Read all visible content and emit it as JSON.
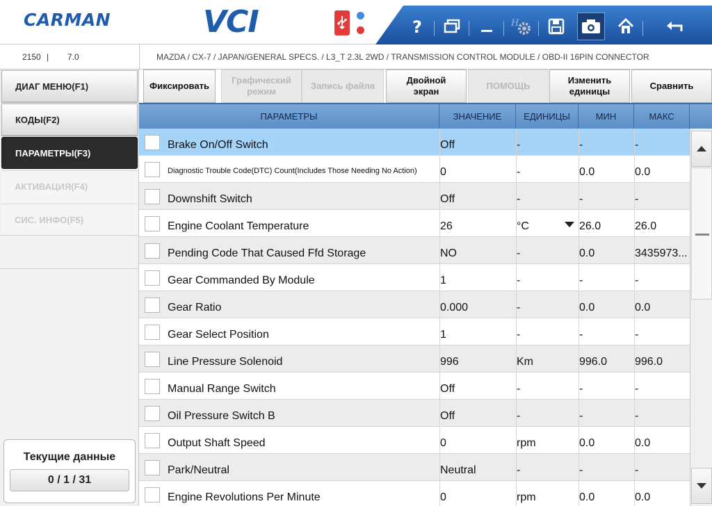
{
  "header": {
    "logo": "CARMAN",
    "product": "VCI",
    "status_colors": {
      "usb": "#e23b3b",
      "led_blue": "#3d8fe6",
      "led_red": "#e23b3b"
    },
    "toolbar": [
      {
        "icon": "help-icon"
      },
      {
        "icon": "window-icon"
      },
      {
        "icon": "minimize-icon"
      },
      {
        "icon": "settings-icon"
      },
      {
        "icon": "save-icon"
      },
      {
        "icon": "camera-icon",
        "active": true
      },
      {
        "icon": "home-icon"
      },
      {
        "icon": "back-icon"
      }
    ]
  },
  "vehicle_bar": {
    "code": "2150",
    "version": "7.0",
    "breadcrumb": "MAZDA / CX-7 / JAPAN/GENERAL SPECS. / L3_T 2.3L 2WD / TRANSMISSION CONTROL MODULE / OBD-II 16PIN CONNECTOR"
  },
  "sidebar": {
    "items": [
      {
        "label": "ДИАГ МЕНЮ(F1)",
        "state": "normal"
      },
      {
        "label": "КОДЫ(F2)",
        "state": "normal"
      },
      {
        "label": "ПАРАМЕТРЫ(F3)",
        "state": "active"
      },
      {
        "label": "АКТИВАЦИЯ(F4)",
        "state": "disabled"
      },
      {
        "label": "СИС. ИНФО(F5)",
        "state": "disabled"
      }
    ],
    "current_data": {
      "title": "Текущие данные",
      "count": "0 / 1 / 31"
    }
  },
  "functions": [
    {
      "label": "Фиксировать",
      "enabled": true
    },
    {
      "label": "Графический\nрежим",
      "enabled": false
    },
    {
      "label": "Запись файла",
      "enabled": false
    },
    {
      "label": "Двойной\nэкран",
      "enabled": true
    },
    {
      "label": "ПОМОЩЬ",
      "enabled": false
    },
    {
      "label": "Изменить\nединицы",
      "enabled": true
    },
    {
      "label": "Сравнить",
      "enabled": true
    }
  ],
  "table": {
    "columns": [
      "ПАРАМЕТРЫ",
      "ЗНАЧЕНИЕ",
      "ЕДИНИЦЫ",
      "МИН",
      "МАКС"
    ],
    "rows": [
      {
        "name": "Brake On/Off Switch",
        "value": "Off",
        "unit": "-",
        "min": "-",
        "max": "-"
      },
      {
        "name": "Diagnostic Trouble Code(DTC) Count(Includes Those Needing No Action)",
        "value": "0",
        "unit": "-",
        "min": "0.0",
        "max": "0.0",
        "small": true
      },
      {
        "name": "Downshift Switch",
        "value": "Off",
        "unit": "-",
        "min": "-",
        "max": "-"
      },
      {
        "name": "Engine Coolant Temperature",
        "value": "26",
        "unit": "°C",
        "min": "26.0",
        "max": "26.0",
        "dropdown": true
      },
      {
        "name": "Pending Code That Caused Ffd Storage",
        "value": "NO",
        "unit": "-",
        "min": "0.0",
        "max": "3435973..."
      },
      {
        "name": "Gear Commanded By Module",
        "value": "1",
        "unit": "-",
        "min": "-",
        "max": "-"
      },
      {
        "name": "Gear Ratio",
        "value": "0.000",
        "unit": "-",
        "min": "0.0",
        "max": "0.0"
      },
      {
        "name": "Gear Select Position",
        "value": "1",
        "unit": "-",
        "min": "-",
        "max": "-"
      },
      {
        "name": "Line Pressure Solenoid",
        "value": "996",
        "unit": "Km",
        "min": "996.0",
        "max": "996.0"
      },
      {
        "name": "Manual Range Switch",
        "value": "Off",
        "unit": "-",
        "min": "-",
        "max": "-"
      },
      {
        "name": "Oil Pressure Switch B",
        "value": "Off",
        "unit": "-",
        "min": "-",
        "max": "-"
      },
      {
        "name": "Output Shaft Speed",
        "value": "0",
        "unit": "rpm",
        "min": "0.0",
        "max": "0.0"
      },
      {
        "name": "Park/Neutral",
        "value": "Neutral",
        "unit": "-",
        "min": "-",
        "max": "-"
      },
      {
        "name": "Engine Revolutions Per Minute",
        "value": "0",
        "unit": "rpm",
        "min": "0.0",
        "max": "0.0"
      }
    ]
  }
}
